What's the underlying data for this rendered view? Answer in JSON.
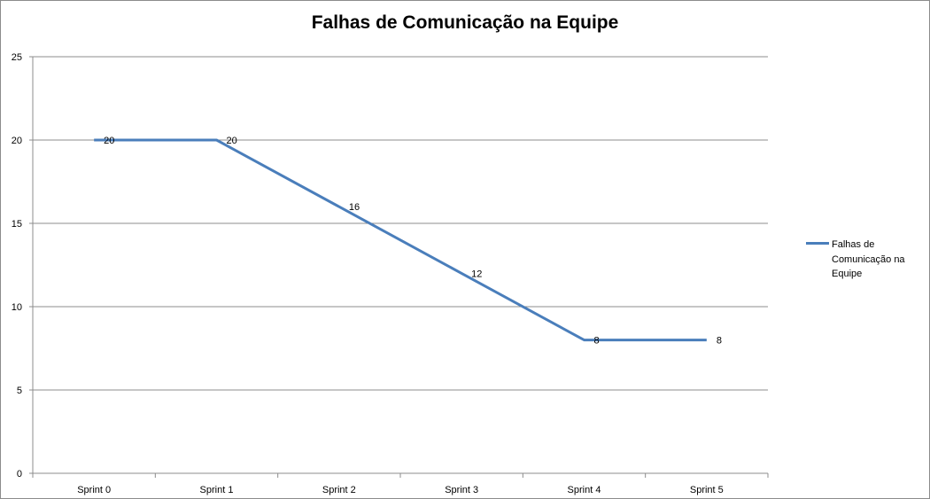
{
  "chart_data": {
    "type": "line",
    "title": "Falhas de Comunicação na Equipe",
    "categories": [
      "Sprint 0",
      "Sprint 1",
      "Sprint 2",
      "Sprint 3",
      "Sprint 4",
      "Sprint 5"
    ],
    "series": [
      {
        "name": "Falhas de Comunicação na Equipe",
        "values": [
          20,
          20,
          16,
          12,
          8,
          8
        ],
        "color": "#4a7ebb"
      }
    ],
    "ylim": [
      0,
      25
    ],
    "yticks": [
      0,
      5,
      10,
      15,
      20,
      25
    ],
    "grid": true,
    "legend_position": "right",
    "data_labels": true
  }
}
